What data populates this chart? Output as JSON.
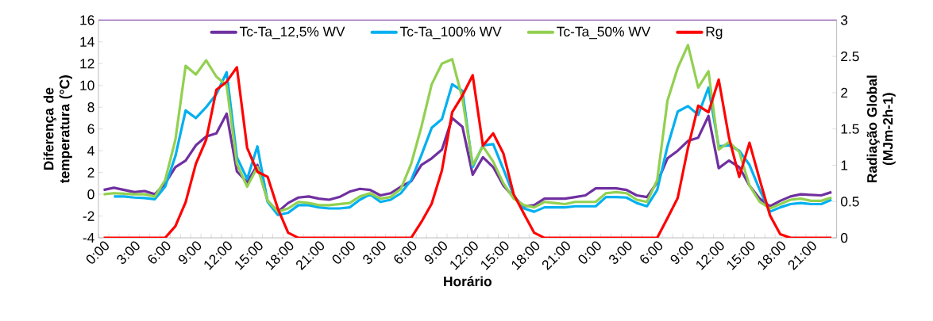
{
  "chart_data": {
    "type": "line",
    "xlabel": "Horário",
    "ylabel": "Diferença de temperatura (°C)",
    "y2label": "Radiação Global (MJm-2h-1)",
    "categories": [
      "0:00",
      null,
      null,
      "3:00",
      null,
      null,
      "6:00",
      null,
      null,
      "9:00",
      null,
      null,
      "12:00",
      null,
      null,
      "15:00",
      null,
      null,
      "18:00",
      null,
      null,
      "21:00",
      null,
      null,
      "0:00",
      null,
      null,
      "3:00",
      null,
      null,
      "6:00",
      null,
      null,
      "9:00",
      null,
      null,
      "12:00",
      null,
      null,
      "15:00",
      null,
      null,
      "18:00",
      null,
      null,
      "21:00",
      null,
      null,
      "0:00",
      null,
      null,
      "3:00",
      null,
      null,
      "6:00",
      null,
      null,
      "9:00",
      null,
      null,
      "12:00",
      null,
      null,
      "15:00",
      null,
      null,
      "18:00",
      null,
      null,
      "21:00",
      null,
      null
    ],
    "series": [
      {
        "name": "Tc-Ta_12,5% WV",
        "color": "#7030a0",
        "values": [
          0.4,
          0.6,
          0.4,
          0.2,
          0.3,
          0.0,
          1.0,
          2.5,
          3.1,
          4.5,
          5.3,
          5.6,
          7.4,
          2.1,
          1.1,
          2.7,
          -0.6,
          -1.6,
          -0.8,
          -0.3,
          -0.2,
          -0.4,
          -0.5,
          -0.25,
          0.24,
          0.5,
          0.4,
          -0.1,
          0.1,
          0.7,
          1.2,
          2.7,
          3.3,
          4.1,
          7.0,
          6.2,
          1.8,
          3.4,
          2.5,
          0.8,
          -0.25,
          -1.1,
          -1.0,
          -0.4,
          -0.4,
          -0.4,
          -0.25,
          -0.1,
          0.55,
          0.55,
          0.55,
          0.4,
          -0.1,
          -0.25,
          1.1,
          3.3,
          4.0,
          4.9,
          5.2,
          7.2,
          2.4,
          3.1,
          2.5,
          0.8,
          -0.4,
          -1.1,
          -0.6,
          -0.2,
          0.0,
          -0.05,
          -0.1,
          0.2
        ]
      },
      {
        "name": "Tc-Ta_100% WV",
        "color": "#00b0f0",
        "values": [
          null,
          -0.2,
          -0.2,
          -0.3,
          -0.35,
          -0.45,
          0.7,
          3.5,
          7.7,
          7.0,
          8.0,
          9.2,
          11.2,
          3.4,
          1.4,
          4.4,
          -0.7,
          -1.9,
          -1.7,
          -1.0,
          -1.0,
          -1.2,
          -1.3,
          -1.3,
          -1.2,
          -0.5,
          0.0,
          -0.7,
          -0.5,
          0.1,
          1.3,
          3.6,
          6.1,
          6.9,
          10.1,
          9.5,
          2.5,
          4.5,
          4.6,
          2.3,
          -0.1,
          -1.3,
          -1.6,
          -1.2,
          -1.2,
          -1.2,
          -1.1,
          -1.1,
          -1.1,
          -0.25,
          -0.25,
          -0.3,
          -0.8,
          -1.1,
          0.4,
          4.4,
          7.6,
          8.1,
          7.3,
          9.8,
          4.4,
          4.5,
          4.0,
          2.7,
          0.4,
          -1.6,
          -1.2,
          -0.9,
          -0.8,
          -0.9,
          -0.9,
          -0.5
        ]
      },
      {
        "name": "Tc-Ta_50% WV",
        "color": "#92d050",
        "values": [
          0.0,
          0.1,
          0.05,
          0.0,
          0.0,
          -0.2,
          1.3,
          5.0,
          11.8,
          11.0,
          12.3,
          10.8,
          10.0,
          2.8,
          0.7,
          2.5,
          -0.6,
          -1.6,
          -1.3,
          -0.7,
          -0.8,
          -1.0,
          -1.0,
          -0.9,
          -0.8,
          -0.2,
          0.1,
          -0.4,
          -0.25,
          0.5,
          2.8,
          6.2,
          10.1,
          12.0,
          12.4,
          8.8,
          2.7,
          4.4,
          3.0,
          1.0,
          -0.4,
          -1.0,
          -1.2,
          -0.7,
          -0.8,
          -0.9,
          -0.7,
          -0.7,
          -0.7,
          0.1,
          0.2,
          0.1,
          -0.5,
          -0.7,
          1.3,
          8.6,
          11.6,
          13.7,
          9.8,
          11.3,
          4.1,
          4.8,
          3.9,
          0.8,
          -0.7,
          -1.3,
          -0.9,
          -0.5,
          -0.4,
          -0.6,
          -0.6,
          -0.3
        ]
      },
      {
        "name": "Rg",
        "color": "#ff0000",
        "axis": "y2",
        "values": [
          0,
          0,
          0,
          0,
          0,
          0,
          0,
          0.16,
          0.49,
          1.02,
          1.35,
          2.04,
          2.15,
          2.35,
          1.24,
          0.91,
          0.84,
          0.4,
          0.07,
          0,
          0,
          0,
          0,
          0,
          0,
          0,
          0,
          0,
          0,
          0,
          0,
          0.22,
          0.47,
          0.93,
          1.73,
          1.96,
          2.24,
          1.27,
          1.44,
          1.16,
          0.6,
          0.33,
          0.07,
          0,
          0,
          0,
          0,
          0,
          0,
          0,
          0,
          0,
          0,
          0,
          0,
          0.27,
          0.55,
          1.24,
          1.82,
          1.73,
          2.18,
          1.38,
          0.84,
          1.31,
          0.8,
          0.31,
          0.05,
          0,
          0,
          0,
          0,
          0
        ]
      }
    ],
    "ylim": [
      -4,
      16
    ],
    "yticks": [
      -4,
      -2,
      0,
      2,
      4,
      6,
      8,
      10,
      12,
      14,
      16
    ],
    "y2lim": [
      0,
      3
    ],
    "y2ticks": [
      0,
      0.5,
      1,
      1.5,
      2,
      2.5,
      3
    ],
    "legend": "top"
  }
}
